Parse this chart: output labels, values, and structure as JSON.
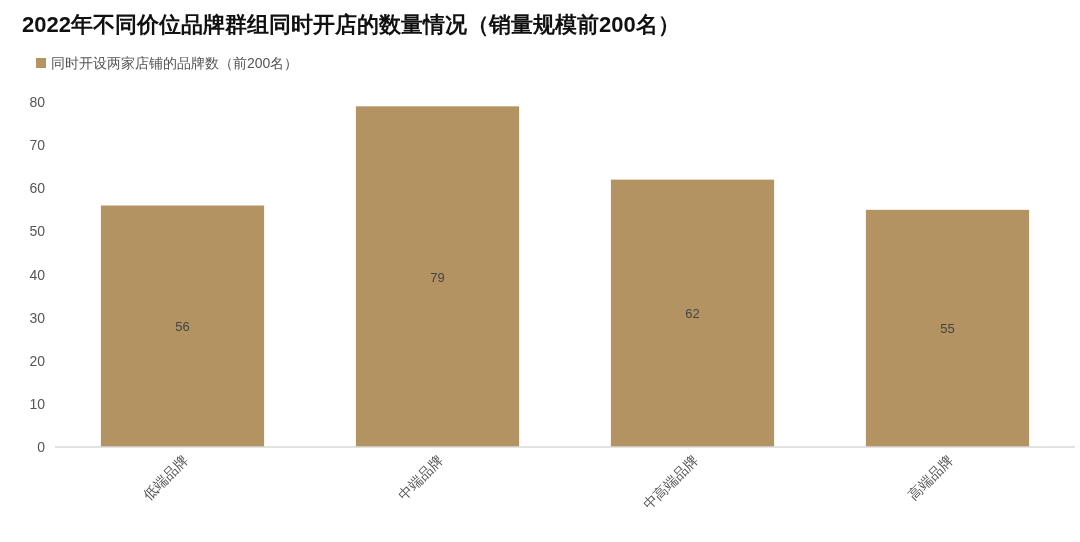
{
  "chart_data": {
    "type": "bar",
    "title": "2022年不同价位品牌群组同时开店的数量情况（销量规模前200名）",
    "categories": [
      "低端品牌",
      "中端品牌",
      "中高端品牌",
      "高端品牌"
    ],
    "series": [
      {
        "name": "同时开设两家店铺的品牌数（前200名）",
        "color": "#b49362",
        "values": [
          56,
          79,
          62,
          55
        ]
      }
    ],
    "ylim": [
      0,
      80
    ],
    "yticks": [
      0,
      10,
      20,
      30,
      40,
      50,
      60,
      70,
      80
    ],
    "grid": false,
    "legend": "top left",
    "data_labels": true
  }
}
